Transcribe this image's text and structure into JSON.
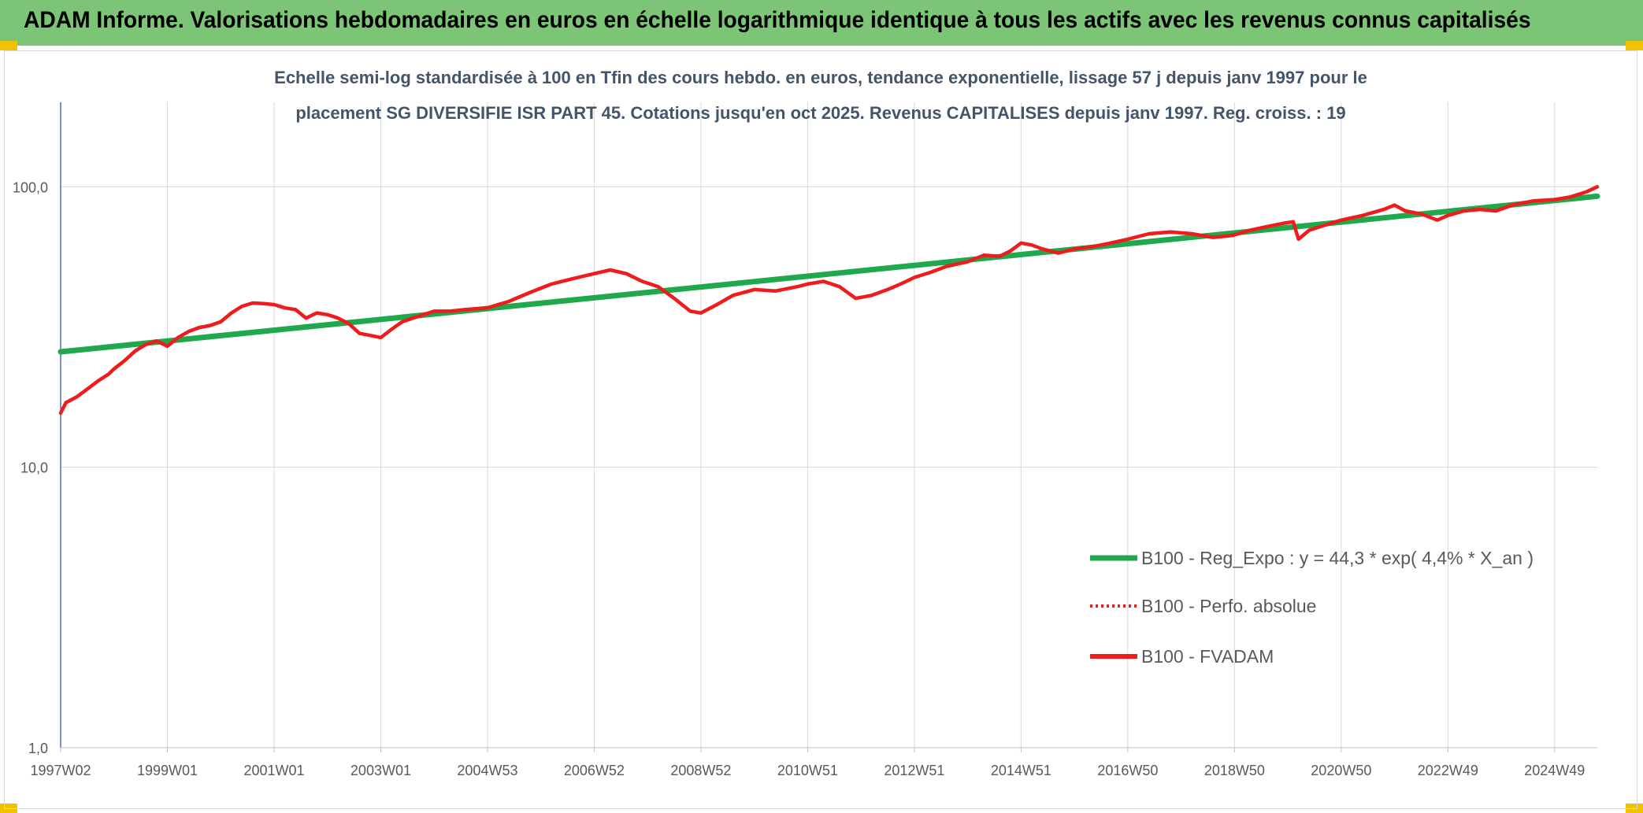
{
  "header": {
    "title": "ADAM Informe. Valorisations hebdomadaires en euros en échelle logarithmique identique à tous les actifs avec les revenus connus capitalisés"
  },
  "colors": {
    "banner": "#7cc576",
    "trend": "#1fa84c",
    "series": "#ee1c1c",
    "corner": "#f2c200"
  },
  "chart_data": {
    "type": "line",
    "scale_y": "log",
    "title_lines": [
      "Echelle semi-log standardisée à 100 en Tfin des cours hebdo. en euros, tendance exponentielle, lissage 57 j depuis janv 1997 pour le",
      "placement SG DIVERSIFIE ISR PART 45. Cotations jusqu'en oct 2025. Revenus CAPITALISES depuis janv 1997. Reg. croiss. : 19"
    ],
    "ylim": [
      1,
      200
    ],
    "y_ticks": [
      {
        "value": 1,
        "label": "1,0"
      },
      {
        "value": 10,
        "label": "10,0"
      },
      {
        "value": 100,
        "label": "100,0"
      }
    ],
    "xlim": [
      1997.0,
      2025.8
    ],
    "x_ticks": [
      {
        "value": 1997.0,
        "label": "1997W02"
      },
      {
        "value": 1999.0,
        "label": "1999W01"
      },
      {
        "value": 2001.0,
        "label": "2001W01"
      },
      {
        "value": 2003.0,
        "label": "2003W01"
      },
      {
        "value": 2005.0,
        "label": "2004W53"
      },
      {
        "value": 2007.0,
        "label": "2006W52"
      },
      {
        "value": 2009.0,
        "label": "2008W52"
      },
      {
        "value": 2011.0,
        "label": "2010W51"
      },
      {
        "value": 2013.0,
        "label": "2012W51"
      },
      {
        "value": 2015.0,
        "label": "2014W51"
      },
      {
        "value": 2017.0,
        "label": "2016W50"
      },
      {
        "value": 2019.0,
        "label": "2018W50"
      },
      {
        "value": 2021.0,
        "label": "2020W50"
      },
      {
        "value": 2023.0,
        "label": "2022W49"
      },
      {
        "value": 2025.0,
        "label": "2024W49"
      }
    ],
    "grid": true,
    "legend_position": "bottom-right",
    "series": [
      {
        "name": "B100 - Reg_Expo : y = 44,3 * exp( 4,4% *  X_an )",
        "style": "solid-thick",
        "color": "#1fa84c",
        "x": [
          1997.0,
          2025.8
        ],
        "y": [
          25.8,
          92.5
        ]
      },
      {
        "name": "B100 - Perfo. absolue",
        "style": "dotted",
        "color": "#ee1c1c",
        "x": [],
        "y": []
      },
      {
        "name": "B100 - FVADAM",
        "style": "solid",
        "color": "#ee1c1c",
        "x": [
          1997.0,
          1997.1,
          1997.3,
          1997.5,
          1997.7,
          1997.9,
          1998.0,
          1998.2,
          1998.4,
          1998.6,
          1998.8,
          1998.9,
          1999.0,
          1999.2,
          1999.4,
          1999.6,
          1999.8,
          2000.0,
          2000.2,
          2000.4,
          2000.6,
          2000.8,
          2001.0,
          2001.2,
          2001.4,
          2001.6,
          2001.8,
          2002.0,
          2002.2,
          2002.4,
          2002.6,
          2002.8,
          2003.0,
          2003.2,
          2003.4,
          2003.6,
          2003.8,
          2004.0,
          2004.3,
          2004.6,
          2005.0,
          2005.4,
          2005.8,
          2006.2,
          2006.6,
          2007.0,
          2007.3,
          2007.6,
          2007.9,
          2008.2,
          2008.5,
          2008.8,
          2009.0,
          2009.3,
          2009.6,
          2010.0,
          2010.4,
          2010.8,
          2011.0,
          2011.3,
          2011.6,
          2011.9,
          2012.2,
          2012.5,
          2012.8,
          2013.0,
          2013.3,
          2013.6,
          2014.0,
          2014.3,
          2014.6,
          2014.8,
          2015.0,
          2015.2,
          2015.4,
          2015.7,
          2016.0,
          2016.3,
          2016.6,
          2017.0,
          2017.4,
          2017.8,
          2018.2,
          2018.6,
          2018.95,
          2019.3,
          2019.6,
          2019.9,
          2020.1,
          2020.2,
          2020.4,
          2020.7,
          2021.0,
          2021.4,
          2021.8,
          2022.0,
          2022.2,
          2022.5,
          2022.8,
          2023.0,
          2023.3,
          2023.6,
          2023.9,
          2024.2,
          2024.6,
          2025.0,
          2025.3,
          2025.6,
          2025.8
        ],
        "y": [
          15.6,
          17.0,
          17.8,
          19.0,
          20.3,
          21.5,
          22.4,
          24.0,
          26.0,
          27.4,
          28.2,
          27.6,
          27.0,
          29.0,
          30.5,
          31.5,
          32.0,
          33.0,
          35.5,
          37.5,
          38.5,
          38.3,
          38.0,
          37.0,
          36.5,
          34.0,
          35.5,
          35.0,
          34.0,
          32.5,
          30.0,
          29.5,
          29.0,
          31.0,
          33.0,
          34.0,
          35.0,
          36.0,
          36.0,
          36.5,
          37.0,
          39.0,
          42.0,
          45.0,
          47.0,
          49.0,
          50.5,
          49.0,
          46.0,
          44.0,
          40.0,
          36.0,
          35.5,
          38.0,
          41.0,
          43.0,
          42.5,
          44.0,
          45.0,
          46.0,
          44.0,
          40.0,
          41.0,
          43.0,
          45.5,
          47.5,
          49.5,
          52.0,
          54.0,
          57.0,
          56.5,
          59.0,
          63.0,
          62.0,
          60.0,
          58.0,
          60.0,
          61.0,
          62.5,
          65.0,
          68.0,
          69.0,
          68.0,
          66.0,
          67.0,
          70.0,
          72.0,
          74.0,
          75.0,
          65.0,
          70.0,
          73.0,
          76.0,
          79.0,
          83.0,
          86.0,
          82.0,
          80.0,
          76.0,
          79.0,
          82.0,
          83.0,
          82.0,
          86.0,
          89.0,
          90.0,
          92.0,
          96.0,
          100.0
        ]
      }
    ]
  }
}
